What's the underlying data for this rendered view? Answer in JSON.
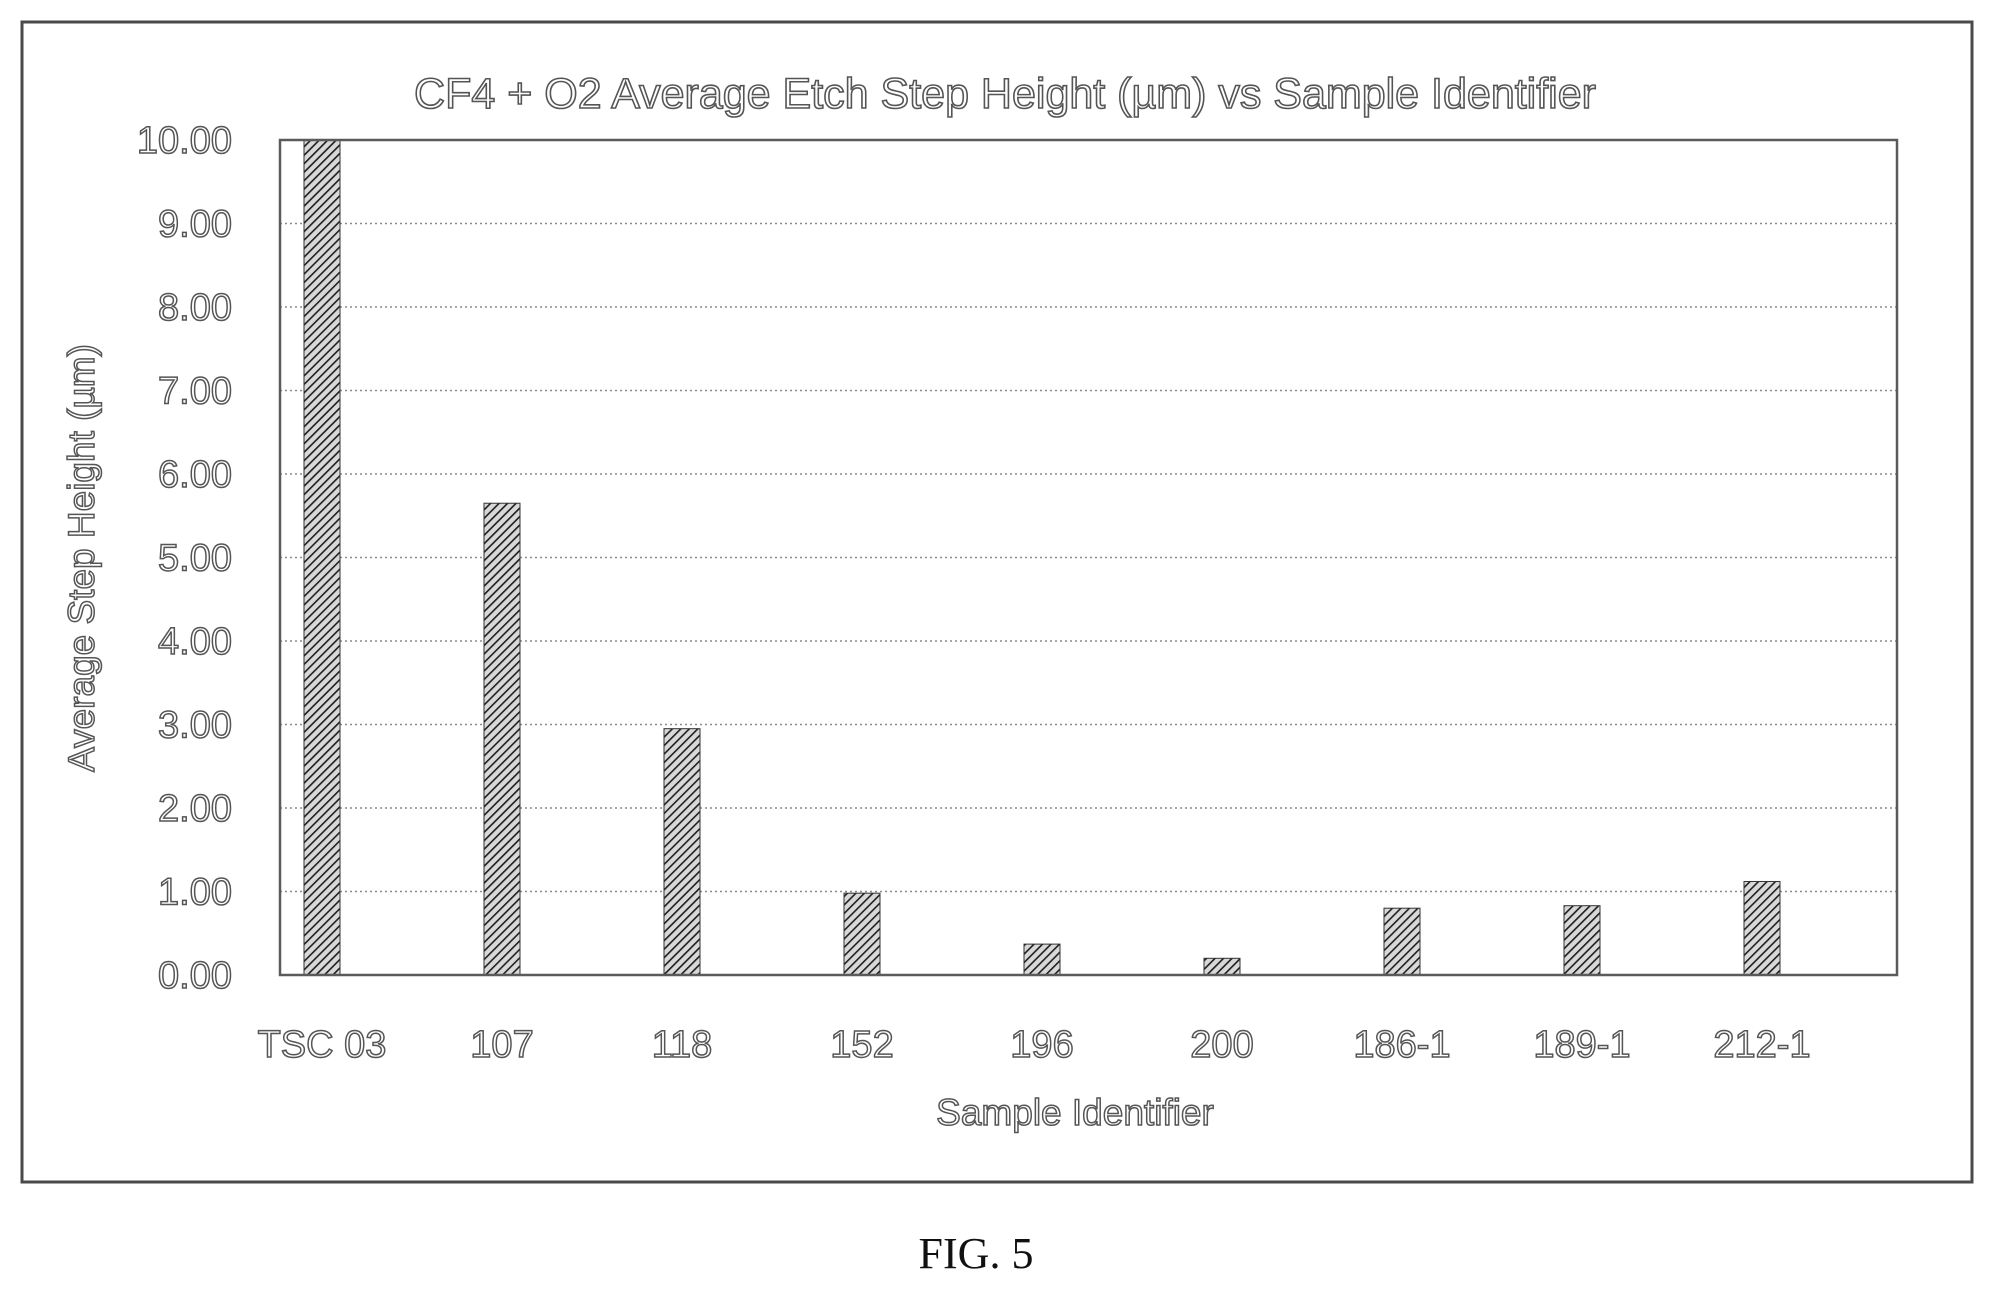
{
  "chart_data": {
    "type": "bar",
    "title": "CF4 + O2 Average Etch Step Height (µm) vs Sample Identifier",
    "xlabel": "Sample Identifier",
    "ylabel": "Average Step Height (µm)",
    "ylim": [
      0,
      10
    ],
    "yticks": [
      "0.00",
      "1.00",
      "2.00",
      "3.00",
      "4.00",
      "5.00",
      "6.00",
      "7.00",
      "8.00",
      "9.00",
      "10.00"
    ],
    "categories": [
      "TSC 03",
      "107",
      "118",
      "152",
      "196",
      "200",
      "186-1",
      "189-1",
      "212-1"
    ],
    "values": [
      10.0,
      5.65,
      2.95,
      0.98,
      0.37,
      0.2,
      0.8,
      0.83,
      1.12
    ],
    "grid": true,
    "legend": "none",
    "bar_fill": "hatched"
  },
  "caption": "FIG. 5"
}
